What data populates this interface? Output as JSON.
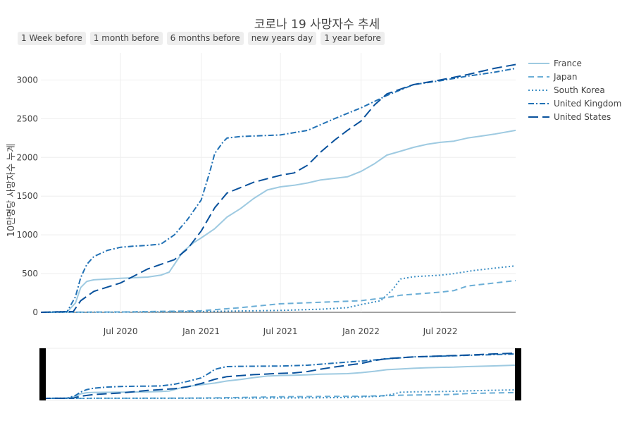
{
  "title": "코로나 19 사망자수 추세",
  "range_buttons": [
    "1 Week before",
    "1 month before",
    "6 months before",
    "new years day",
    "1 year before"
  ],
  "colors": {
    "France": "#9ecae1",
    "Japan": "#6baed6",
    "South Korea": "#4292c6",
    "United Kingdom": "#2171b5",
    "United States": "#08519c"
  },
  "chart_data": {
    "type": "line",
    "title": "코로나 19 사망자수 추세",
    "xlabel": "",
    "ylabel": "10만명당 사망자수 누계",
    "x_range": [
      "2020-01-01",
      "2022-12-20"
    ],
    "ylim": [
      -20,
      3350
    ],
    "y_ticks": [
      0,
      500,
      1000,
      1500,
      2000,
      2500,
      3000
    ],
    "y_tick_labels": [
      "0",
      "500",
      "1000",
      "1500",
      "2000",
      "2500",
      "3000"
    ],
    "x_ticks": [
      "2020-07-01",
      "2021-01-01",
      "2021-07-01",
      "2022-01-01",
      "2022-07-01"
    ],
    "x_tick_labels": [
      "Jul 2020",
      "Jan 2021",
      "Jul 2021",
      "Jan 2022",
      "Jul 2022"
    ],
    "grid": true,
    "legend_position": "right",
    "rangeslider": true,
    "series": [
      {
        "name": "France",
        "dash": "solid",
        "x": [
          "2020-01-01",
          "2020-03-01",
          "2020-03-20",
          "2020-04-01",
          "2020-04-15",
          "2020-05-01",
          "2020-07-01",
          "2020-09-01",
          "2020-10-01",
          "2020-10-20",
          "2020-11-01",
          "2020-11-20",
          "2020-12-15",
          "2021-01-01",
          "2021-02-01",
          "2021-03-01",
          "2021-04-01",
          "2021-05-01",
          "2021-06-01",
          "2021-07-01",
          "2021-08-01",
          "2021-09-01",
          "2021-10-01",
          "2021-11-01",
          "2021-12-01",
          "2022-01-01",
          "2022-02-01",
          "2022-03-01",
          "2022-04-01",
          "2022-05-01",
          "2022-06-01",
          "2022-07-01",
          "2022-08-01",
          "2022-09-01",
          "2022-10-01",
          "2022-11-01",
          "2022-12-20"
        ],
        "y": [
          0,
          5,
          120,
          320,
          400,
          420,
          440,
          455,
          480,
          520,
          620,
          780,
          900,
          960,
          1080,
          1230,
          1340,
          1470,
          1580,
          1620,
          1640,
          1670,
          1710,
          1730,
          1750,
          1820,
          1920,
          2030,
          2080,
          2130,
          2170,
          2195,
          2210,
          2250,
          2275,
          2300,
          2350
        ]
      },
      {
        "name": "Japan",
        "dash": "dash",
        "x": [
          "2020-01-01",
          "2020-07-01",
          "2021-01-01",
          "2021-04-01",
          "2021-07-01",
          "2021-10-01",
          "2022-01-01",
          "2022-03-01",
          "2022-04-01",
          "2022-07-01",
          "2022-08-01",
          "2022-09-01",
          "2022-12-20"
        ],
        "y": [
          0,
          5,
          20,
          60,
          110,
          130,
          150,
          190,
          220,
          260,
          280,
          340,
          410
        ]
      },
      {
        "name": "South Korea",
        "dash": "dot",
        "x": [
          "2020-01-01",
          "2020-07-01",
          "2021-01-01",
          "2021-07-01",
          "2021-10-01",
          "2021-12-01",
          "2022-01-01",
          "2022-02-15",
          "2022-03-15",
          "2022-04-01",
          "2022-05-01",
          "2022-07-01",
          "2022-08-01",
          "2022-09-15",
          "2022-11-01",
          "2022-12-20"
        ],
        "y": [
          0,
          3,
          10,
          25,
          40,
          60,
          100,
          150,
          300,
          430,
          460,
          480,
          500,
          540,
          570,
          600
        ]
      },
      {
        "name": "United Kingdom",
        "dash": "dashdot",
        "x": [
          "2020-01-01",
          "2020-03-01",
          "2020-03-20",
          "2020-04-01",
          "2020-04-15",
          "2020-05-01",
          "2020-06-01",
          "2020-07-01",
          "2020-08-01",
          "2020-09-01",
          "2020-10-01",
          "2020-11-01",
          "2020-12-01",
          "2021-01-01",
          "2021-01-20",
          "2021-02-01",
          "2021-02-20",
          "2021-03-01",
          "2021-04-01",
          "2021-07-01",
          "2021-09-01",
          "2021-11-01",
          "2022-01-01",
          "2022-03-01",
          "2022-05-01",
          "2022-07-01",
          "2022-09-01",
          "2022-11-01",
          "2022-12-20"
        ],
        "y": [
          0,
          10,
          200,
          450,
          620,
          720,
          800,
          840,
          855,
          865,
          880,
          1000,
          1200,
          1450,
          1800,
          2050,
          2200,
          2250,
          2270,
          2290,
          2350,
          2500,
          2640,
          2800,
          2940,
          2990,
          3050,
          3100,
          3150
        ]
      },
      {
        "name": "United States",
        "dash": "longdash",
        "x": [
          "2020-01-01",
          "2020-03-15",
          "2020-04-01",
          "2020-05-01",
          "2020-07-01",
          "2020-09-01",
          "2020-11-01",
          "2020-12-01",
          "2021-01-01",
          "2021-02-01",
          "2021-03-01",
          "2021-05-01",
          "2021-07-01",
          "2021-08-01",
          "2021-09-01",
          "2021-10-01",
          "2021-11-01",
          "2021-12-01",
          "2022-01-01",
          "2022-02-01",
          "2022-03-01",
          "2022-05-01",
          "2022-07-01",
          "2022-09-01",
          "2022-11-01",
          "2022-12-20"
        ],
        "y": [
          0,
          10,
          150,
          270,
          380,
          560,
          680,
          820,
          1050,
          1350,
          1540,
          1680,
          1770,
          1800,
          1900,
          2070,
          2220,
          2350,
          2470,
          2680,
          2820,
          2940,
          3000,
          3070,
          3150,
          3200
        ]
      }
    ]
  }
}
